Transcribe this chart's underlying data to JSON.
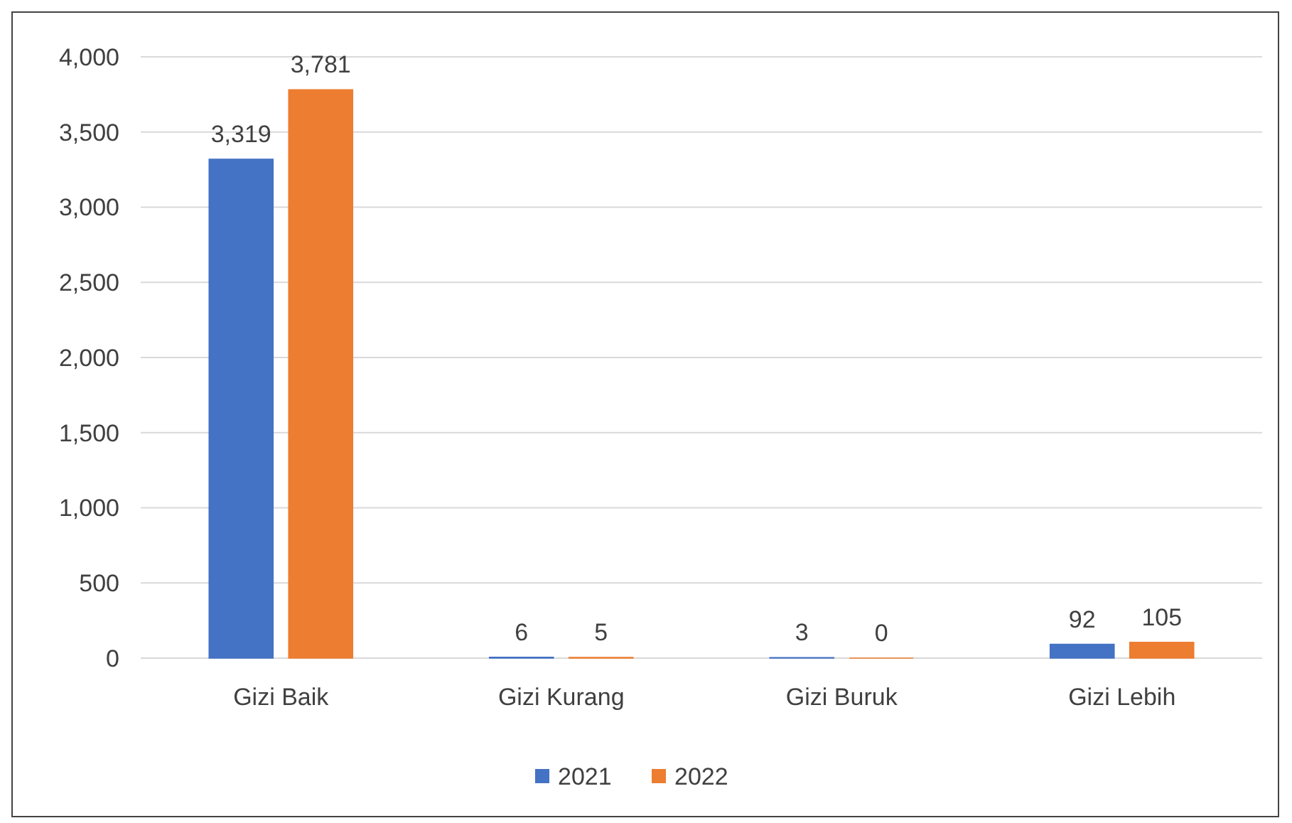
{
  "chart_data": {
    "type": "bar",
    "categories": [
      "Gizi Baik",
      "Gizi Kurang",
      "Gizi Buruk",
      "Gizi Lebih"
    ],
    "series": [
      {
        "name": "2021",
        "color": "#4472c4",
        "values": [
          3319,
          6,
          3,
          92
        ],
        "value_labels": [
          "3,319",
          "6",
          "3",
          "92"
        ]
      },
      {
        "name": "2022",
        "color": "#ed7d31",
        "values": [
          3781,
          5,
          0,
          105
        ],
        "value_labels": [
          "3,781",
          "5",
          "0",
          "105"
        ]
      }
    ],
    "ylim": [
      0,
      4000
    ],
    "yticks": [
      {
        "value": 0,
        "label": "0"
      },
      {
        "value": 500,
        "label": "500"
      },
      {
        "value": 1000,
        "label": "1,000"
      },
      {
        "value": 1500,
        "label": "1,500"
      },
      {
        "value": 2000,
        "label": "2,000"
      },
      {
        "value": 2500,
        "label": "2,500"
      },
      {
        "value": 3000,
        "label": "3,000"
      },
      {
        "value": 3500,
        "label": "3,500"
      },
      {
        "value": 4000,
        "label": "4,000"
      }
    ],
    "grid": "y",
    "legend": "bottom"
  }
}
